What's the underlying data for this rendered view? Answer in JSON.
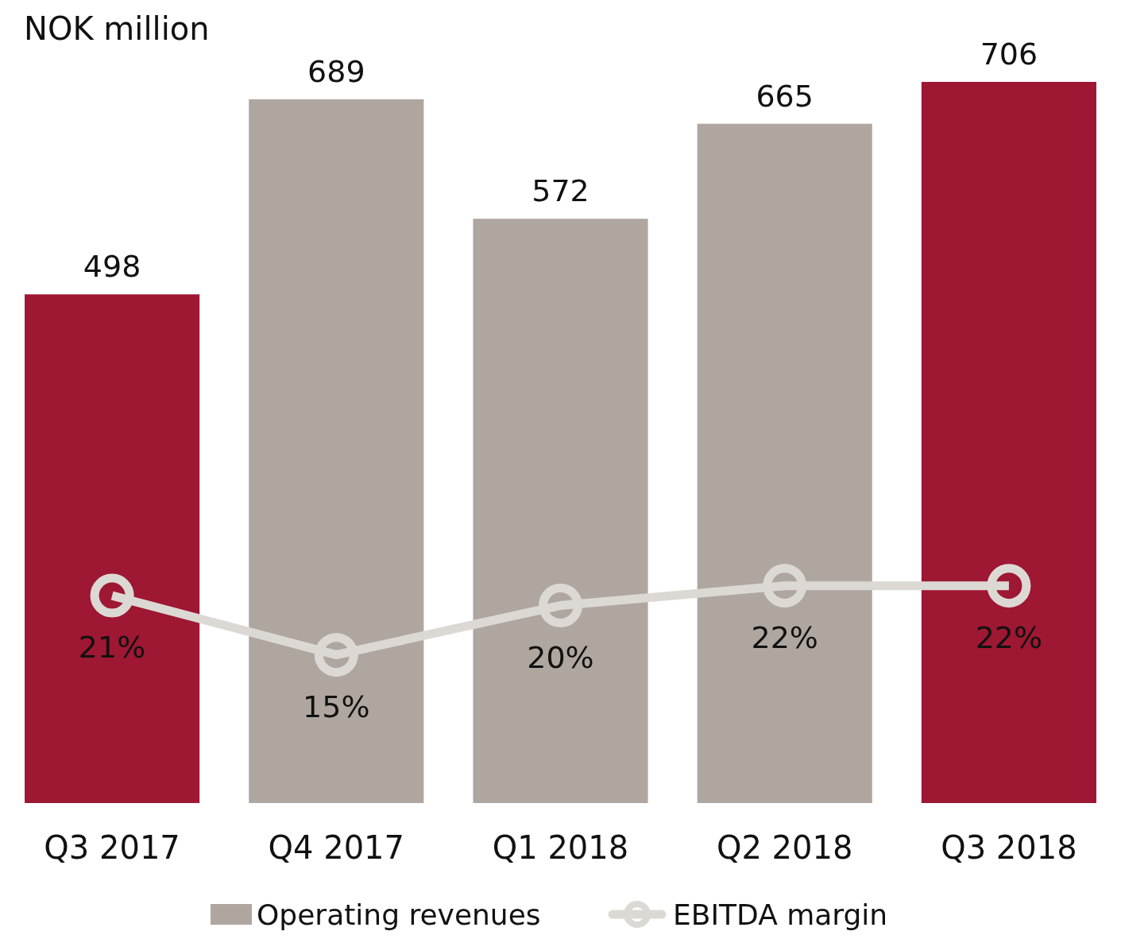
{
  "chart_data": {
    "type": "bar",
    "ylabel": "NOK million",
    "categories": [
      "Q3 2017",
      "Q4 2017",
      "Q1 2018",
      "Q2 2018",
      "Q3 2018"
    ],
    "ylim": [
      0,
      706
    ],
    "y2lim": [
      0,
      73
    ],
    "data_labels": true,
    "legend": "bottom",
    "marker": "circle",
    "series": [
      {
        "name": "Operating revenues",
        "color": "#afa6a0",
        "colors": [
          "#9e1733",
          "#afa6a0",
          "#afa6a0",
          "#afa6a0",
          "#9e1733"
        ],
        "values": [
          498,
          689,
          572,
          665,
          706
        ]
      },
      {
        "name": "EBITDA margin",
        "type": "line",
        "axis": "y2",
        "color": "#dcd9d4",
        "values": [
          21,
          15,
          20,
          22,
          22
        ],
        "value_labels": [
          "21%",
          "15%",
          "20%",
          "22%",
          "22%"
        ]
      }
    ]
  }
}
